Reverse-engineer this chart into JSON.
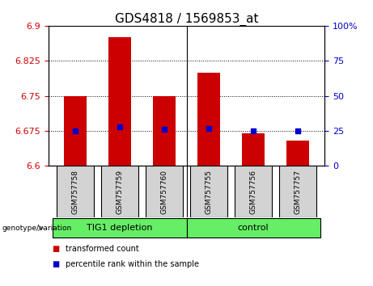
{
  "title": "GDS4818 / 1569853_at",
  "samples": [
    "GSM757758",
    "GSM757759",
    "GSM757760",
    "GSM757755",
    "GSM757756",
    "GSM757757"
  ],
  "bar_values": [
    6.75,
    6.875,
    6.75,
    6.8,
    6.67,
    6.655
  ],
  "percentile_values": [
    6.675,
    6.683,
    6.678,
    6.68,
    6.675,
    6.675
  ],
  "ylim_left": [
    6.6,
    6.9
  ],
  "ylim_right": [
    0,
    100
  ],
  "yticks_left": [
    6.6,
    6.675,
    6.75,
    6.825,
    6.9
  ],
  "yticks_right": [
    0,
    25,
    50,
    75,
    100
  ],
  "ytick_labels_left": [
    "6.6",
    "6.675",
    "6.75",
    "6.825",
    "6.9"
  ],
  "ytick_labels_right": [
    "0",
    "25",
    "50",
    "75",
    "100%"
  ],
  "bar_color": "#CC0000",
  "dot_color": "#0000CC",
  "bar_width": 0.5,
  "grid_color": "#000000",
  "bg_color": "#ffffff",
  "plot_bg": "#ffffff",
  "label_box_color": "#d3d3d3",
  "group_box_color": "#66EE66",
  "legend_red_label": "transformed count",
  "legend_blue_label": "percentile rank within the sample",
  "genotype_label": "genotype/variation",
  "title_fontsize": 11,
  "tick_fontsize": 8,
  "group1_label": "TIG1 depletion",
  "group2_label": "control"
}
